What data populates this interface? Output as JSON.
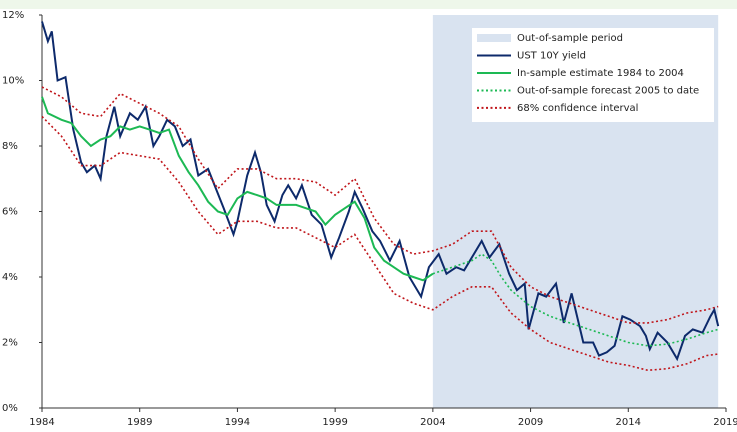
{
  "chart_data": {
    "type": "line",
    "xlim": [
      1984,
      2019
    ],
    "xticks": [
      1984,
      1989,
      1994,
      1999,
      2004,
      2009,
      2014,
      2019
    ],
    "ylim": [
      0,
      12
    ],
    "yticks": [
      {
        "value": 0,
        "label": "0%"
      },
      {
        "value": 2,
        "label": "2%"
      },
      {
        "value": 4,
        "label": "4%"
      },
      {
        "value": 6,
        "label": "6%"
      },
      {
        "value": 8,
        "label": "8%"
      },
      {
        "value": 10,
        "label": "10%"
      },
      {
        "value": 12,
        "label": "12%"
      }
    ],
    "grid": false,
    "legend": "top-right",
    "shade": {
      "name": "Out-of-sample period",
      "color": "#d9e3f0",
      "x": [
        2004,
        2018.6
      ]
    },
    "series": [
      {
        "name": "UST 10Y yield",
        "color": "#0d2a6b",
        "style": "solid",
        "x": [
          1984.0,
          1984.3,
          1984.5,
          1984.8,
          1985.2,
          1985.6,
          1986.0,
          1986.3,
          1986.7,
          1987.0,
          1987.3,
          1987.7,
          1988.0,
          1988.5,
          1988.9,
          1989.3,
          1989.7,
          1990.0,
          1990.4,
          1990.8,
          1991.2,
          1991.6,
          1992.0,
          1992.5,
          1992.9,
          1993.3,
          1993.8,
          1994.0,
          1994.5,
          1994.9,
          1995.2,
          1995.5,
          1995.9,
          1996.3,
          1996.6,
          1997.0,
          1997.3,
          1997.8,
          1998.3,
          1998.8,
          1999.2,
          1999.7,
          2000.0,
          2000.4,
          2000.9,
          2001.3,
          2001.8,
          2002.3,
          2002.8,
          2003.4,
          2003.8,
          2004.3,
          2004.7,
          2005.2,
          2005.6,
          2006.0,
          2006.5,
          2006.9,
          2007.4,
          2007.9,
          2008.3,
          2008.7,
          2008.9,
          2009.4,
          2009.8,
          2010.3,
          2010.7,
          2011.1,
          2011.7,
          2012.2,
          2012.5,
          2012.9,
          2013.3,
          2013.7,
          2014.1,
          2014.6,
          2014.9,
          2015.1,
          2015.5,
          2016.0,
          2016.5,
          2016.9,
          2017.3,
          2017.8,
          2018.2,
          2018.4,
          2018.6
        ],
        "values": [
          11.8,
          11.2,
          11.5,
          10.0,
          10.1,
          8.5,
          7.5,
          7.2,
          7.4,
          7.0,
          8.3,
          9.2,
          8.3,
          9.0,
          8.8,
          9.2,
          8.0,
          8.3,
          8.8,
          8.6,
          8.0,
          8.2,
          7.1,
          7.3,
          6.7,
          6.1,
          5.3,
          5.7,
          7.1,
          7.8,
          7.2,
          6.2,
          5.7,
          6.5,
          6.8,
          6.4,
          6.8,
          5.9,
          5.6,
          4.6,
          5.2,
          6.0,
          6.6,
          6.1,
          5.4,
          5.1,
          4.5,
          5.1,
          4.0,
          3.4,
          4.3,
          4.7,
          4.1,
          4.3,
          4.2,
          4.6,
          5.1,
          4.6,
          5.0,
          4.1,
          3.6,
          3.8,
          2.4,
          3.5,
          3.4,
          3.8,
          2.6,
          3.5,
          2.0,
          2.0,
          1.6,
          1.7,
          1.9,
          2.8,
          2.7,
          2.5,
          2.2,
          1.8,
          2.3,
          2.0,
          1.5,
          2.2,
          2.4,
          2.3,
          2.8,
          3.0,
          2.5
        ]
      },
      {
        "name": "In-sample estimate 1984 to 2004",
        "color": "#1db954",
        "style": "solid",
        "x": [
          1984,
          1984.3,
          1985,
          1985.5,
          1986,
          1986.5,
          1987,
          1987.5,
          1988,
          1988.5,
          1989,
          1989.5,
          1990,
          1990.5,
          1991,
          1991.5,
          1992,
          1992.5,
          1993,
          1993.5,
          1994,
          1994.5,
          1995,
          1995.5,
          1996,
          1996.5,
          1997,
          1997.5,
          1998,
          1998.5,
          1999,
          1999.5,
          2000,
          2000.5,
          2001,
          2001.5,
          2002,
          2002.5,
          2003,
          2003.5,
          2004
        ],
        "values": [
          9.5,
          9.0,
          8.8,
          8.7,
          8.3,
          8.0,
          8.2,
          8.3,
          8.6,
          8.5,
          8.6,
          8.5,
          8.4,
          8.5,
          7.7,
          7.2,
          6.8,
          6.3,
          6.0,
          5.9,
          6.4,
          6.6,
          6.5,
          6.4,
          6.2,
          6.2,
          6.2,
          6.1,
          6.0,
          5.6,
          5.9,
          6.1,
          6.3,
          5.8,
          4.9,
          4.5,
          4.3,
          4.1,
          4.0,
          3.9,
          4.1
        ]
      },
      {
        "name": "Out-of-sample forecast 2005 to date",
        "color": "#1db954",
        "style": "dotted",
        "x": [
          2004,
          2005,
          2006,
          2006.5,
          2007,
          2007.5,
          2008,
          2009,
          2010,
          2011,
          2012,
          2013,
          2014,
          2015,
          2016,
          2017,
          2018,
          2018.6
        ],
        "values": [
          4.1,
          4.3,
          4.5,
          4.7,
          4.5,
          4.0,
          3.6,
          3.1,
          2.8,
          2.6,
          2.4,
          2.2,
          2.0,
          1.9,
          1.95,
          2.1,
          2.3,
          2.4
        ]
      },
      {
        "name": "68% confidence interval",
        "color": "#c0161b",
        "style": "dotted",
        "x": [
          1984,
          1985,
          1986,
          1987,
          1988,
          1989,
          1990,
          1991,
          1992,
          1993,
          1994,
          1995,
          1996,
          1997,
          1998,
          1999,
          2000,
          2001,
          2002,
          2003,
          2004,
          2005,
          2006,
          2007,
          2008,
          2009,
          2010,
          2011,
          2012,
          2013,
          2014,
          2015,
          2016,
          2017,
          2018,
          2018.6
        ],
        "upper": [
          9.8,
          9.5,
          9.0,
          8.9,
          9.6,
          9.3,
          9.0,
          8.6,
          7.6,
          6.7,
          7.3,
          7.3,
          7.0,
          7.0,
          6.9,
          6.5,
          7.0,
          5.8,
          5.0,
          4.7,
          4.8,
          5.0,
          5.4,
          5.4,
          4.3,
          3.7,
          3.4,
          3.2,
          3.0,
          2.8,
          2.6,
          2.6,
          2.7,
          2.9,
          3.0,
          3.1
        ],
        "lower": [
          8.9,
          8.3,
          7.4,
          7.4,
          7.8,
          7.7,
          7.6,
          6.9,
          6.0,
          5.3,
          5.7,
          5.7,
          5.5,
          5.5,
          5.2,
          4.9,
          5.3,
          4.4,
          3.5,
          3.2,
          3.0,
          3.4,
          3.7,
          3.7,
          2.9,
          2.4,
          2.0,
          1.8,
          1.6,
          1.4,
          1.3,
          1.15,
          1.2,
          1.35,
          1.6,
          1.65
        ]
      }
    ]
  }
}
